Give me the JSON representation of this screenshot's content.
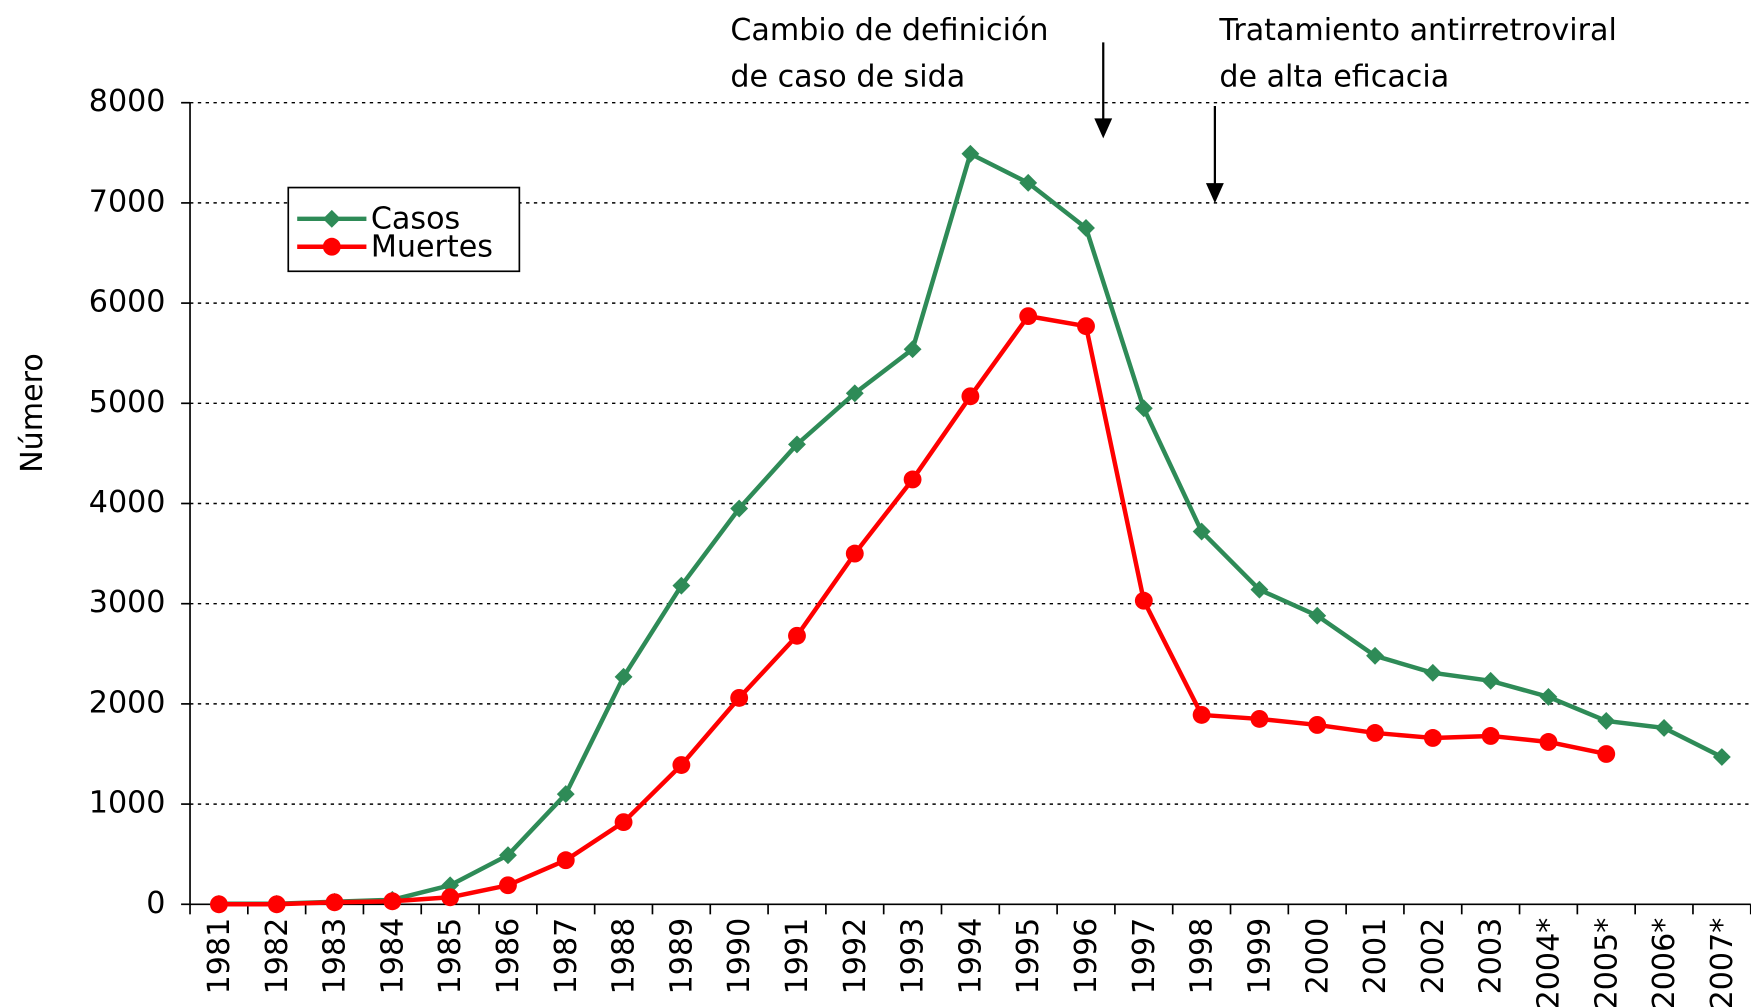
{
  "chart_data": {
    "type": "line",
    "y_label": "Número",
    "annotations": [
      [
        "Cambio de definición",
        "de caso de sida"
      ],
      [
        "Tratamiento antirretroviral",
        "de alta eficacia"
      ]
    ],
    "categories": [
      "1981",
      "1982",
      "1983",
      "1984",
      "1985",
      "1986",
      "1987",
      "1988",
      "1989",
      "1990",
      "1991",
      "1992",
      "1993",
      "1994",
      "1995",
      "1996",
      "1997",
      "1998",
      "1999",
      "2000",
      "2001",
      "2002",
      "2003",
      "2004*",
      "2005*",
      "2006*",
      "2007*"
    ],
    "series": [
      {
        "name": "Casos",
        "color": "#2e8b57",
        "marker": "diamond",
        "values": [
          5,
          5,
          25,
          45,
          190,
          490,
          1100,
          2270,
          3180,
          3950,
          4590,
          5100,
          5540,
          7490,
          7200,
          6750,
          4950,
          3720,
          3140,
          2880,
          2480,
          2310,
          2230,
          2070,
          1830,
          1760,
          1470
        ]
      },
      {
        "name": "Muertes",
        "color": "#ff0000",
        "marker": "circle",
        "values": [
          0,
          0,
          20,
          30,
          70,
          190,
          440,
          820,
          1390,
          2060,
          2680,
          3500,
          4240,
          5070,
          5870,
          5770,
          3030,
          1890,
          1850,
          1790,
          1710,
          1660,
          1680,
          1620,
          1500,
          null,
          null
        ]
      }
    ],
    "ylim": [
      0,
      8000
    ],
    "yticks": [
      0,
      1000,
      2000,
      3000,
      4000,
      5000,
      6000,
      7000,
      8000
    ],
    "grid": true,
    "legend": "upper left"
  }
}
